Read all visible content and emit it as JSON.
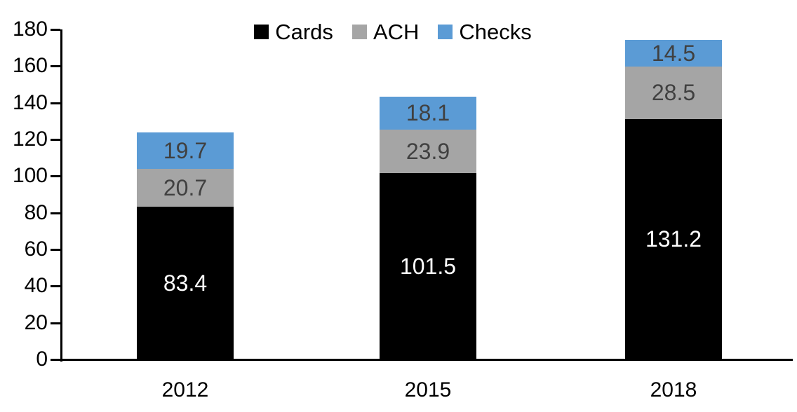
{
  "chart_data": {
    "type": "bar",
    "stacked": true,
    "title": "",
    "xlabel": "",
    "ylabel": "",
    "categories": [
      "2012",
      "2015",
      "2018"
    ],
    "series": [
      {
        "name": "Cards",
        "color": "#000000",
        "label_color": "#ffffff",
        "values": [
          83.4,
          101.5,
          131.2
        ]
      },
      {
        "name": "ACH",
        "color": "#a5a5a5",
        "label_color": "#404040",
        "values": [
          20.7,
          23.9,
          28.5
        ]
      },
      {
        "name": "Checks",
        "color": "#5b9bd5",
        "label_color": "#404040",
        "values": [
          19.7,
          18.1,
          14.5
        ]
      }
    ],
    "ylim": [
      0,
      180
    ],
    "ytick_interval": 20,
    "yticks": [
      "0",
      "20",
      "40",
      "60",
      "80",
      "100",
      "120",
      "140",
      "160",
      "180"
    ],
    "grid": false,
    "legend_position": "top",
    "axis_color": "#000000",
    "background_color": "#ffffff",
    "data_labels_shown": true
  }
}
